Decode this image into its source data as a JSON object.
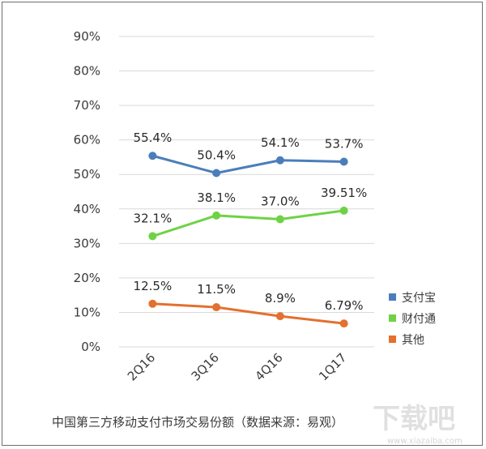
{
  "chart_data": {
    "type": "line",
    "categories": [
      "2Q16",
      "3Q16",
      "4Q16",
      "1Q17"
    ],
    "series": [
      {
        "name": "支付宝",
        "values": [
          55.4,
          50.4,
          54.1,
          53.7
        ],
        "labels": [
          "55.4%",
          "50.4%",
          "54.1%",
          "53.7%"
        ],
        "color": "#4a7ebb"
      },
      {
        "name": "财付通",
        "values": [
          32.1,
          38.1,
          37.0,
          39.51
        ],
        "labels": [
          "32.1%",
          "38.1%",
          "37.0%",
          "39.51%"
        ],
        "color": "#6fd246"
      },
      {
        "name": "其他",
        "values": [
          12.5,
          11.5,
          8.9,
          6.79
        ],
        "labels": [
          "12.5%",
          "11.5%",
          "8.9%",
          "6.79%"
        ],
        "color": "#e3702f"
      }
    ],
    "yticks": [
      "0%",
      "10%",
      "20%",
      "30%",
      "40%",
      "50%",
      "60%",
      "70%",
      "80%",
      "90%"
    ],
    "ylim": [
      0,
      90
    ],
    "grid": true,
    "legend_position": "right",
    "caption": "中国第三方移动支付市场交易份额（数据来源：易观）"
  },
  "watermark": {
    "text": "下载吧",
    "subtext": "www.xiazaiba.com"
  }
}
